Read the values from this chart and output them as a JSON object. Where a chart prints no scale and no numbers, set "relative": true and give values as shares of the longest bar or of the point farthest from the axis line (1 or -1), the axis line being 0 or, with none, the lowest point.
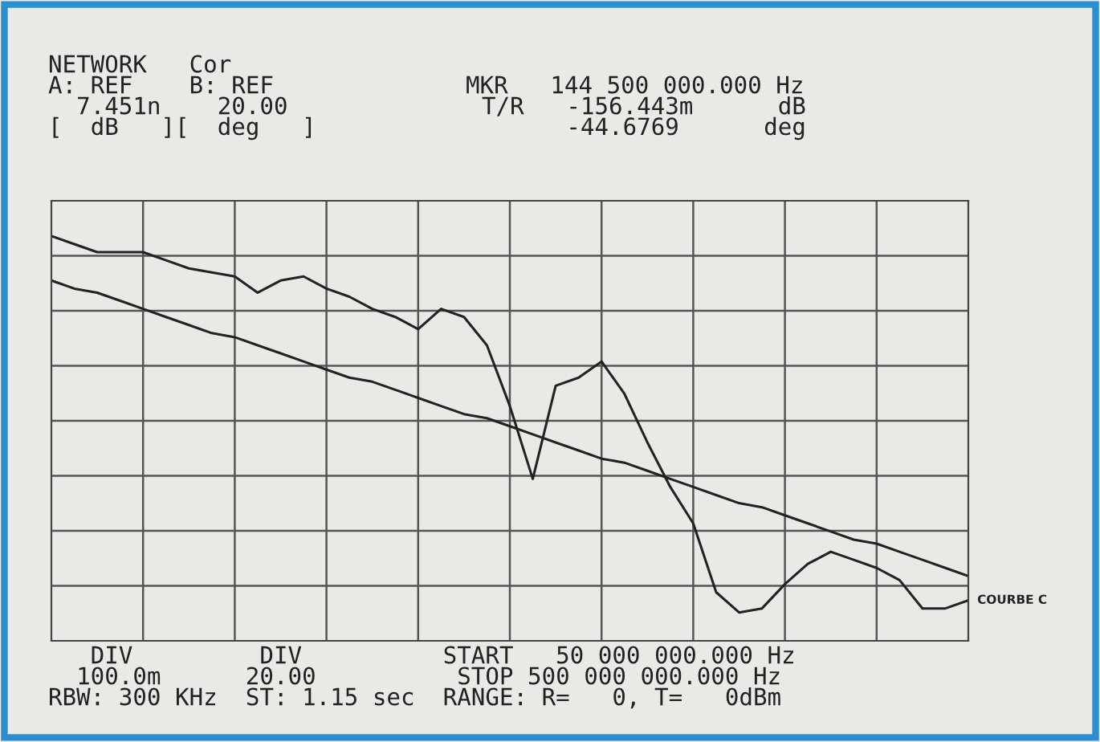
{
  "chart_data": {
    "type": "line",
    "relative": true,
    "grid": true,
    "legend": false,
    "marker": "none",
    "line_style": "solid",
    "categories": [
      null,
      null,
      null,
      null,
      null,
      null,
      null,
      null,
      null,
      null,
      null,
      null,
      null,
      null,
      null,
      null,
      null,
      null,
      null,
      null,
      null,
      null,
      null,
      null,
      null,
      null,
      null,
      null,
      null,
      null,
      null,
      null,
      null,
      null,
      null,
      null,
      null,
      null,
      null,
      null,
      null
    ],
    "series": [
      {
        "name": "COURBE C",
        "color": "#222222",
        "values": [
          1.0,
          0.98,
          0.96,
          0.96,
          0.96,
          0.94,
          0.92,
          0.91,
          0.9,
          0.86,
          0.89,
          0.9,
          0.87,
          0.85,
          0.82,
          0.8,
          0.77,
          0.82,
          0.8,
          0.73,
          0.58,
          0.4,
          0.63,
          0.65,
          0.69,
          0.61,
          0.49,
          0.38,
          0.29,
          0.12,
          0.07,
          0.08,
          0.14,
          0.19,
          0.22,
          0.2,
          0.18,
          0.15,
          0.08,
          0.08,
          0.1
        ]
      },
      {
        "color": "#222222",
        "values": [
          0.89,
          0.87,
          0.86,
          0.84,
          0.82,
          0.8,
          0.78,
          0.76,
          0.75,
          0.73,
          0.71,
          0.69,
          0.67,
          0.65,
          0.64,
          0.62,
          0.6,
          0.58,
          0.56,
          0.55,
          0.53,
          0.51,
          0.49,
          0.47,
          0.45,
          0.44,
          0.42,
          0.4,
          0.38,
          0.36,
          0.34,
          0.33,
          0.31,
          0.29,
          0.27,
          0.25,
          0.24,
          0.22,
          0.2,
          0.18,
          0.16
        ]
      }
    ],
    "annotations": [
      "NETWORK   Cor",
      "A: REF    B: REF",
      "  7.451n    20.00",
      "[  dB   ][  deg   ]",
      "MKR   144 500 000.000 Hz",
      "T/R   -156.443m      dB",
      "      -44.6769      deg",
      "   DIV         DIV          START   50 000 000.000 Hz",
      "  100.0m      20.00          STOP 500 000 000.000 Hz",
      "RBW: 300 KHz  ST: 1.15 sec  RANGE: R=   0, T=   0dBm"
    ]
  }
}
